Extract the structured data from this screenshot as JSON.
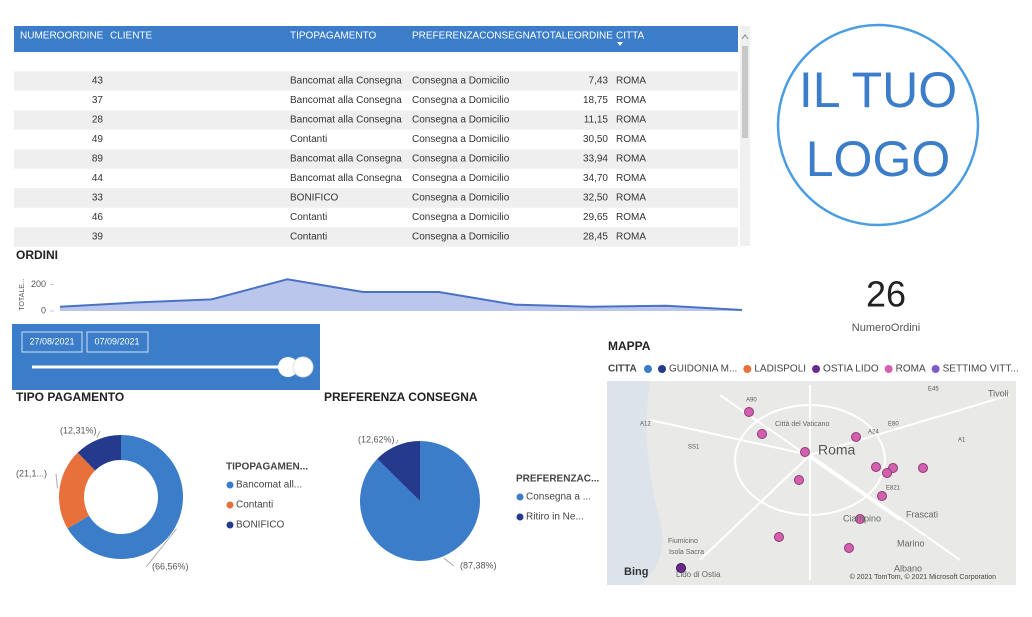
{
  "table": {
    "columns": [
      "NUMEROORDINE",
      "CLIENTE",
      "TIPOPAGAMENTO",
      "PREFERENZACONSEGNA",
      "TOTALEORDINE",
      "CITTA"
    ],
    "rows": [
      {
        "numero": "43",
        "tipo": "Bancomat alla Consegna",
        "consegna": "Consegna a Domicilio",
        "totale": "7,43",
        "citta": "ROMA"
      },
      {
        "numero": "37",
        "tipo": "Bancomat alla Consegna",
        "consegna": "Consegna a Domicilio",
        "totale": "18,75",
        "citta": "ROMA"
      },
      {
        "numero": "28",
        "tipo": "Bancomat alla Consegna",
        "consegna": "Consegna a Domicilio",
        "totale": "11,15",
        "citta": "ROMA"
      },
      {
        "numero": "49",
        "tipo": "Contanti",
        "consegna": "Consegna a Domicilio",
        "totale": "30,50",
        "citta": "ROMA"
      },
      {
        "numero": "89",
        "tipo": "Bancomat alla Consegna",
        "consegna": "Consegna a Domicilio",
        "totale": "33,94",
        "citta": "ROMA"
      },
      {
        "numero": "44",
        "tipo": "Bancomat alla Consegna",
        "consegna": "Consegna a Domicilio",
        "totale": "34,70",
        "citta": "ROMA"
      },
      {
        "numero": "33",
        "tipo": "BONIFICO",
        "consegna": "Consegna a Domicilio",
        "totale": "32,50",
        "citta": "ROMA"
      },
      {
        "numero": "46",
        "tipo": "Contanti",
        "consegna": "Consegna a Domicilio",
        "totale": "29,65",
        "citta": "ROMA"
      },
      {
        "numero": "39",
        "tipo": "Contanti",
        "consegna": "Consegna a Domicilio",
        "totale": "28,45",
        "citta": "ROMA"
      }
    ]
  },
  "logo": [
    "IL TUO",
    "LOGO"
  ],
  "card": {
    "value": 26,
    "label": "NumeroOrdini"
  },
  "slicer": {
    "start": "27/08/2021",
    "end": "07/09/2021"
  },
  "chart_data": [
    {
      "type": "area",
      "title": "ORDINI",
      "y_label": "TOTALE...",
      "categories": [
        null,
        null,
        null,
        null,
        null,
        null,
        null,
        null,
        null,
        null
      ],
      "values": [
        32,
        64,
        88,
        240,
        144,
        144,
        48,
        32,
        40,
        8
      ],
      "color": "#4a72c4",
      "fill": "#aab8e8",
      "ylim": [
        0,
        250
      ],
      "yticks": [
        0,
        200
      ]
    },
    {
      "type": "donut",
      "title": "TIPO PAGAMENTO",
      "legend_title": "TIPOPAGAMEN...",
      "categories": [
        "Bancomat all...",
        "Contanti",
        "BONIFICO"
      ],
      "values": [
        66.56,
        21.13,
        12.31
      ],
      "value_labels": [
        "(66,56%)",
        "(21,1...)",
        "(12,31%)"
      ],
      "colors": [
        "#3b7dc8",
        "#e8703a",
        "#253a8c"
      ]
    },
    {
      "type": "pie",
      "title": "PREFERENZA CONSEGNA",
      "legend_title": "PREFERENZAC...",
      "categories": [
        "Consegna a ...",
        "Ritiro in Ne..."
      ],
      "values": [
        87.38,
        12.62
      ],
      "value_labels": [
        "(87,38%)",
        "(12,62%)"
      ],
      "colors": [
        "#3b7dc8",
        "#253a8c"
      ]
    }
  ],
  "map": {
    "title": "MAPPA",
    "legend_title": "CITTA",
    "legend": [
      {
        "name": "GUIDONIA M...",
        "color": "#253a8c"
      },
      {
        "name": "LADISPOLI",
        "color": "#e8703a"
      },
      {
        "name": "OSTIA LIDO",
        "color": "#6b2a8c"
      },
      {
        "name": "ROMA",
        "color": "#d45fae"
      },
      {
        "name": "SETTIMO VITT...",
        "color": "#7b5cc8"
      }
    ],
    "places": [
      "Roma",
      "Tivoli",
      "Frascati",
      "Ciampino",
      "Marino",
      "Albano",
      "Fiumicino",
      "Isola Sacra",
      "Lido di Ostia",
      "Città del Vaticano"
    ],
    "roads": [
      "A90",
      "A12",
      "SS1",
      "A24",
      "E80",
      "A1",
      "E45",
      "E821"
    ],
    "brand": "Bing",
    "copyright": "© 2021 TomTom, © 2021 Microsoft Corporation"
  }
}
